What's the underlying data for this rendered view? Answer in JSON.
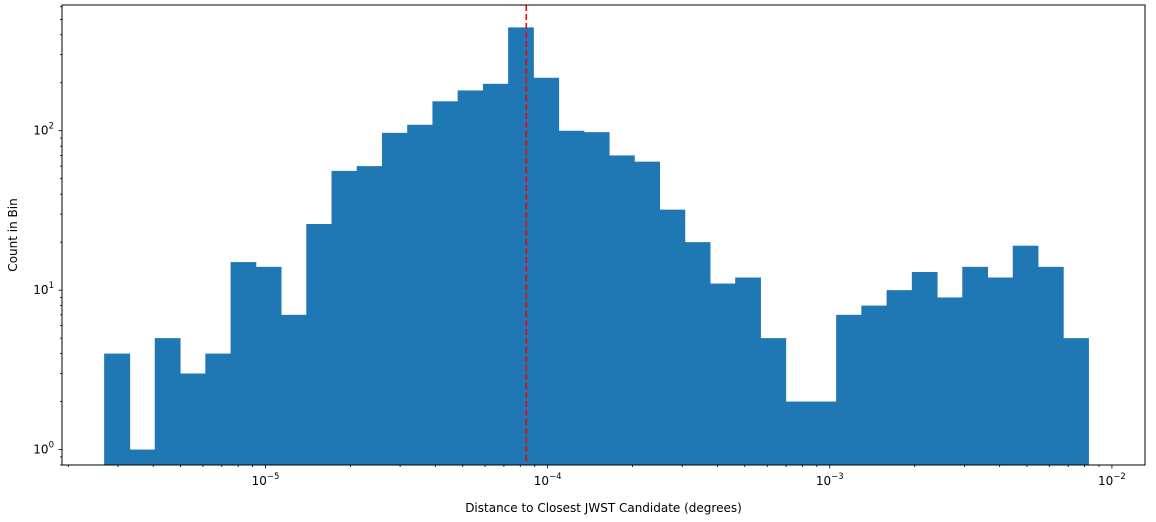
{
  "chart_data": {
    "type": "bar",
    "title": "",
    "xlabel": "Distance to Closest JWST Candidate (degrees)",
    "ylabel": "Count in Bin",
    "x_scale": "log",
    "y_scale": "log",
    "xlim": [
      1.9e-06,
      0.0131
    ],
    "ylim": [
      0.8,
      615
    ],
    "bar_color": "#1f77b4",
    "reference_line": {
      "x": 8.4e-05,
      "color": "#ff0000",
      "style": "dashed"
    },
    "x_major_ticks": [
      {
        "value": 1e-05,
        "base": "10",
        "exp": "−5"
      },
      {
        "value": 0.0001,
        "base": "10",
        "exp": "−4"
      },
      {
        "value": 0.001,
        "base": "10",
        "exp": "−3"
      },
      {
        "value": 0.01,
        "base": "10",
        "exp": "−2"
      }
    ],
    "y_major_ticks": [
      {
        "value": 1,
        "base": "10",
        "exp": "0"
      },
      {
        "value": 10,
        "base": "10",
        "exp": "1"
      },
      {
        "value": 100,
        "base": "10",
        "exp": "2"
      }
    ],
    "bins": [
      {
        "left": 2.68e-06,
        "right": 3.3e-06,
        "count": 4
      },
      {
        "left": 3.3e-06,
        "right": 4.05e-06,
        "count": 1
      },
      {
        "left": 4.05e-06,
        "right": 4.98e-06,
        "count": 5
      },
      {
        "left": 4.98e-06,
        "right": 6.12e-06,
        "count": 3
      },
      {
        "left": 6.12e-06,
        "right": 7.52e-06,
        "count": 4
      },
      {
        "left": 7.52e-06,
        "right": 9.24e-06,
        "count": 15
      },
      {
        "left": 9.24e-06,
        "right": 1.135e-05,
        "count": 14
      },
      {
        "left": 1.135e-05,
        "right": 1.395e-05,
        "count": 7
      },
      {
        "left": 1.395e-05,
        "right": 1.714e-05,
        "count": 26
      },
      {
        "left": 1.714e-05,
        "right": 2.106e-05,
        "count": 56
      },
      {
        "left": 2.106e-05,
        "right": 2.587e-05,
        "count": 60
      },
      {
        "left": 2.587e-05,
        "right": 3.179e-05,
        "count": 97
      },
      {
        "left": 3.179e-05,
        "right": 3.906e-05,
        "count": 109
      },
      {
        "left": 3.906e-05,
        "right": 4.799e-05,
        "count": 153
      },
      {
        "left": 4.799e-05,
        "right": 5.896e-05,
        "count": 179
      },
      {
        "left": 5.896e-05,
        "right": 7.244e-05,
        "count": 197
      },
      {
        "left": 7.244e-05,
        "right": 8.9e-05,
        "count": 445
      },
      {
        "left": 8.9e-05,
        "right": 0.00010936,
        "count": 215
      },
      {
        "left": 0.00010936,
        "right": 0.00013436,
        "count": 100
      },
      {
        "left": 0.00013436,
        "right": 0.00016508,
        "count": 98
      },
      {
        "left": 0.00016508,
        "right": 0.00020282,
        "count": 70
      },
      {
        "left": 0.00020282,
        "right": 0.00024919,
        "count": 64
      },
      {
        "left": 0.00024919,
        "right": 0.00030617,
        "count": 32
      },
      {
        "left": 0.00030617,
        "right": 0.00037617,
        "count": 20
      },
      {
        "left": 0.00037617,
        "right": 0.00046218,
        "count": 11
      },
      {
        "left": 0.00046218,
        "right": 0.00056786,
        "count": 12
      },
      {
        "left": 0.00056786,
        "right": 0.0006977,
        "count": 5
      },
      {
        "left": 0.0006977,
        "right": 0.00085722,
        "count": 2
      },
      {
        "left": 0.00085722,
        "right": 0.00105322,
        "count": 2
      },
      {
        "left": 0.00105322,
        "right": 0.00129403,
        "count": 7
      },
      {
        "left": 0.00129403,
        "right": 0.00158989,
        "count": 8
      },
      {
        "left": 0.00158989,
        "right": 0.00195341,
        "count": 10
      },
      {
        "left": 0.00195341,
        "right": 0.0024,
        "count": 13
      },
      {
        "left": 0.0024,
        "right": 0.00294875,
        "count": 9
      },
      {
        "left": 0.00294875,
        "right": 0.00362296,
        "count": 14
      },
      {
        "left": 0.00362296,
        "right": 0.00445132,
        "count": 12
      },
      {
        "left": 0.00445132,
        "right": 0.00546908,
        "count": 19
      },
      {
        "left": 0.00546908,
        "right": 0.0067195,
        "count": 14
      },
      {
        "left": 0.0067195,
        "right": 0.00825604,
        "count": 5
      }
    ]
  }
}
